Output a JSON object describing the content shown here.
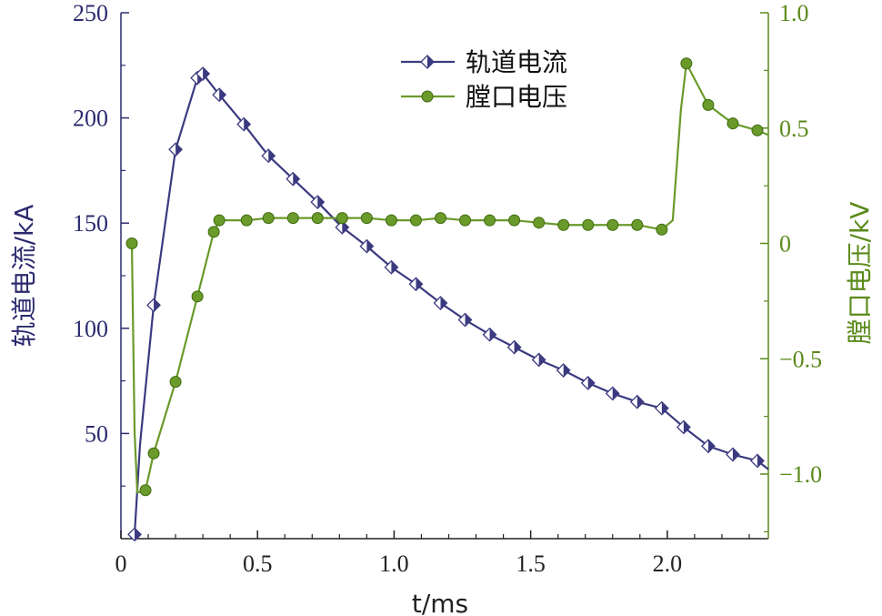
{
  "chart_data": {
    "type": "line",
    "title": "",
    "xlabel": "t/ms",
    "ylabel_left": "轨道电流/kA",
    "ylabel_right": "膛口电压/kV",
    "xlim": [
      0,
      2.37
    ],
    "ylim_left": [
      0,
      250
    ],
    "ylim_right": [
      -1.28,
      1.0
    ],
    "x_ticks": [
      0,
      0.5,
      1.0,
      1.5,
      2.0
    ],
    "x_tick_labels": [
      "0",
      "0.5",
      "1.0",
      "1.5",
      "2.0"
    ],
    "y_left_ticks": [
      50,
      100,
      150,
      200,
      250
    ],
    "y_left_tick_labels": [
      "50",
      "100",
      "150",
      "200",
      "250"
    ],
    "y_right_ticks": [
      -1.0,
      -0.5,
      0,
      0.5,
      1.0
    ],
    "y_right_tick_labels": [
      "−1.0",
      "−0.5",
      "0",
      "0.5",
      "1.0"
    ],
    "grid": false,
    "legend_position": "top-center",
    "colors": {
      "current": "#3b3a80",
      "voltage": "#6a9a2a",
      "axis_left": "#2d2b6e",
      "axis_right": "#5a8a1a"
    },
    "series": [
      {
        "name": "轨道电流",
        "axis": "left",
        "marker": "diamond-half",
        "color": "#3b3a80",
        "x": [
          0.05,
          0.07,
          0.12,
          0.2,
          0.28,
          0.3,
          0.36,
          0.45,
          0.54,
          0.63,
          0.72,
          0.81,
          0.9,
          0.99,
          1.08,
          1.17,
          1.26,
          1.35,
          1.44,
          1.53,
          1.62,
          1.71,
          1.8,
          1.89,
          1.98,
          2.06,
          2.15,
          2.24,
          2.33,
          2.37
        ],
        "y": [
          2,
          45,
          111,
          185,
          219,
          221,
          211,
          197,
          182,
          171,
          160,
          148,
          139,
          129,
          121,
          112,
          104,
          97,
          91,
          85,
          80,
          74,
          69,
          65,
          62,
          53,
          44,
          40,
          37,
          33
        ]
      },
      {
        "name": "膛口电压",
        "axis": "right",
        "marker": "circle",
        "color": "#6a9a2a",
        "x": [
          0.04,
          0.05,
          0.06,
          0.09,
          0.12,
          0.2,
          0.28,
          0.34,
          0.36,
          0.46,
          0.54,
          0.63,
          0.72,
          0.81,
          0.9,
          0.99,
          1.08,
          1.17,
          1.26,
          1.35,
          1.44,
          1.53,
          1.62,
          1.71,
          1.8,
          1.89,
          1.98,
          2.02,
          2.05,
          2.07,
          2.15,
          2.24,
          2.33,
          2.37
        ],
        "y": [
          0.0,
          -0.82,
          -1.08,
          -1.07,
          -0.91,
          -0.6,
          -0.23,
          0.05,
          0.1,
          0.1,
          0.11,
          0.11,
          0.11,
          0.11,
          0.11,
          0.1,
          0.1,
          0.11,
          0.1,
          0.1,
          0.1,
          0.09,
          0.08,
          0.08,
          0.08,
          0.08,
          0.06,
          0.1,
          0.58,
          0.78,
          0.6,
          0.52,
          0.49,
          0.47
        ]
      }
    ]
  }
}
